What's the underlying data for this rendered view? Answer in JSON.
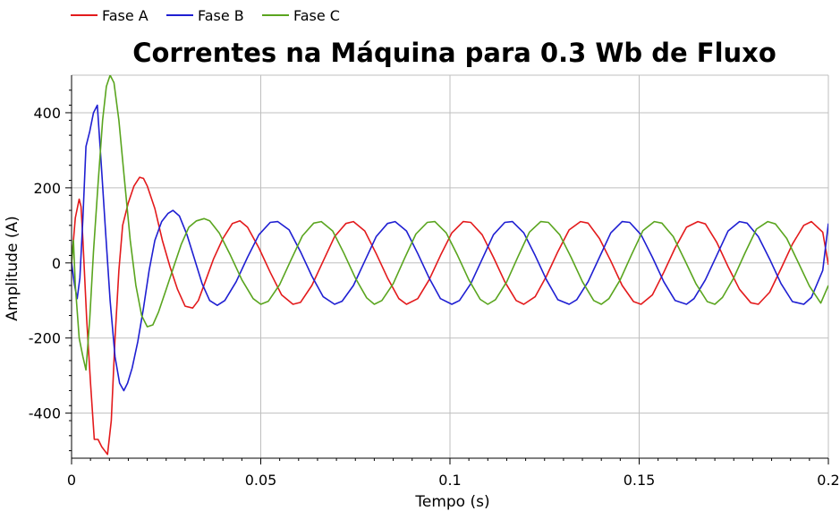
{
  "chart_data": {
    "type": "line",
    "title": "Correntes na Máquina para 0.3 Wb de Fluxo",
    "xlabel": "Tempo (s)",
    "ylabel": "Amplitude (A)",
    "xlim": [
      0,
      0.2
    ],
    "ylim": [
      -520,
      500
    ],
    "xticks": [
      0,
      0.05,
      0.1,
      0.15,
      0.2
    ],
    "xtick_labels": [
      "0",
      "0.05",
      "0.1",
      "0.15",
      "0.2"
    ],
    "yticks": [
      -400,
      -200,
      0,
      200,
      400
    ],
    "ytick_labels": [
      "-400",
      "-200",
      "0",
      "200",
      "400"
    ],
    "grid": true,
    "legend_position": "top-left",
    "series": [
      {
        "name": "Fase A",
        "color": "#e31a1c",
        "points": [
          [
            0,
            0
          ],
          [
            0.001,
            120
          ],
          [
            0.002,
            170
          ],
          [
            0.0025,
            150
          ],
          [
            0.003,
            60
          ],
          [
            0.004,
            -150
          ],
          [
            0.005,
            -320
          ],
          [
            0.006,
            -470
          ],
          [
            0.007,
            -470
          ],
          [
            0.008,
            -490
          ],
          [
            0.0095,
            -510
          ],
          [
            0.0105,
            -420
          ],
          [
            0.0115,
            -200
          ],
          [
            0.0125,
            -20
          ],
          [
            0.0135,
            100
          ],
          [
            0.015,
            160
          ],
          [
            0.0165,
            205
          ],
          [
            0.018,
            228
          ],
          [
            0.019,
            225
          ],
          [
            0.02,
            205
          ],
          [
            0.022,
            145
          ],
          [
            0.024,
            60
          ],
          [
            0.026,
            -10
          ],
          [
            0.028,
            -70
          ],
          [
            0.03,
            -115
          ],
          [
            0.032,
            -120
          ],
          [
            0.0335,
            -100
          ],
          [
            0.0355,
            -45
          ],
          [
            0.0375,
            10
          ],
          [
            0.04,
            65
          ],
          [
            0.0425,
            105
          ],
          [
            0.0445,
            112
          ],
          [
            0.0465,
            95
          ],
          [
            0.0495,
            40
          ],
          [
            0.0525,
            -25
          ],
          [
            0.0555,
            -85
          ],
          [
            0.0585,
            -110
          ],
          [
            0.0605,
            -105
          ],
          [
            0.0635,
            -60
          ],
          [
            0.0665,
            5
          ],
          [
            0.0695,
            70
          ],
          [
            0.0725,
            105
          ],
          [
            0.0745,
            110
          ],
          [
            0.0775,
            85
          ],
          [
            0.0805,
            25
          ],
          [
            0.0835,
            -40
          ],
          [
            0.0865,
            -95
          ],
          [
            0.0885,
            -110
          ],
          [
            0.0915,
            -95
          ],
          [
            0.0945,
            -45
          ],
          [
            0.0975,
            20
          ],
          [
            0.1005,
            80
          ],
          [
            0.1035,
            110
          ],
          [
            0.1055,
            108
          ],
          [
            0.1085,
            75
          ],
          [
            0.1115,
            15
          ],
          [
            0.1145,
            -50
          ],
          [
            0.1175,
            -100
          ],
          [
            0.1195,
            -110
          ],
          [
            0.1225,
            -90
          ],
          [
            0.1255,
            -35
          ],
          [
            0.1285,
            30
          ],
          [
            0.1315,
            88
          ],
          [
            0.1345,
            110
          ],
          [
            0.1365,
            106
          ],
          [
            0.1395,
            65
          ],
          [
            0.1425,
            5
          ],
          [
            0.1455,
            -60
          ],
          [
            0.1485,
            -103
          ],
          [
            0.1505,
            -110
          ],
          [
            0.1535,
            -85
          ],
          [
            0.1565,
            -25
          ],
          [
            0.1595,
            40
          ],
          [
            0.1625,
            95
          ],
          [
            0.1655,
            110
          ],
          [
            0.1675,
            104
          ],
          [
            0.1705,
            55
          ],
          [
            0.1735,
            -10
          ],
          [
            0.1765,
            -70
          ],
          [
            0.1795,
            -106
          ],
          [
            0.1815,
            -110
          ],
          [
            0.1845,
            -78
          ],
          [
            0.1875,
            -15
          ],
          [
            0.1905,
            50
          ],
          [
            0.1935,
            100
          ],
          [
            0.1955,
            110
          ],
          [
            0.1985,
            82
          ],
          [
            0.2,
            -5
          ]
        ]
      },
      {
        "name": "Fase B",
        "color": "#1f1fd2",
        "points": [
          [
            0,
            0
          ],
          [
            0.0008,
            -60
          ],
          [
            0.0015,
            -95
          ],
          [
            0.0022,
            -40
          ],
          [
            0.003,
            120
          ],
          [
            0.0038,
            310
          ],
          [
            0.0048,
            350
          ],
          [
            0.0058,
            400
          ],
          [
            0.0068,
            420
          ],
          [
            0.0078,
            270
          ],
          [
            0.009,
            80
          ],
          [
            0.0102,
            -100
          ],
          [
            0.0115,
            -250
          ],
          [
            0.0127,
            -320
          ],
          [
            0.0138,
            -340
          ],
          [
            0.0148,
            -320
          ],
          [
            0.016,
            -280
          ],
          [
            0.0175,
            -210
          ],
          [
            0.019,
            -120
          ],
          [
            0.0205,
            -20
          ],
          [
            0.022,
            60
          ],
          [
            0.0238,
            110
          ],
          [
            0.0255,
            132
          ],
          [
            0.0268,
            140
          ],
          [
            0.0285,
            125
          ],
          [
            0.0305,
            75
          ],
          [
            0.0325,
            10
          ],
          [
            0.0345,
            -55
          ],
          [
            0.0365,
            -100
          ],
          [
            0.0385,
            -113
          ],
          [
            0.0405,
            -100
          ],
          [
            0.0435,
            -50
          ],
          [
            0.0465,
            15
          ],
          [
            0.0495,
            75
          ],
          [
            0.0525,
            108
          ],
          [
            0.0545,
            110
          ],
          [
            0.0575,
            88
          ],
          [
            0.0605,
            30
          ],
          [
            0.0635,
            -35
          ],
          [
            0.0665,
            -90
          ],
          [
            0.0695,
            -110
          ],
          [
            0.0715,
            -102
          ],
          [
            0.0745,
            -60
          ],
          [
            0.0775,
            5
          ],
          [
            0.0805,
            70
          ],
          [
            0.0835,
            105
          ],
          [
            0.0855,
            110
          ],
          [
            0.0885,
            85
          ],
          [
            0.0915,
            25
          ],
          [
            0.0945,
            -40
          ],
          [
            0.0975,
            -95
          ],
          [
            0.1005,
            -110
          ],
          [
            0.1025,
            -100
          ],
          [
            0.1055,
            -55
          ],
          [
            0.1085,
            10
          ],
          [
            0.1115,
            75
          ],
          [
            0.1145,
            108
          ],
          [
            0.1165,
            110
          ],
          [
            0.1195,
            80
          ],
          [
            0.1225,
            20
          ],
          [
            0.1255,
            -45
          ],
          [
            0.1285,
            -98
          ],
          [
            0.1315,
            -110
          ],
          [
            0.1335,
            -98
          ],
          [
            0.1365,
            -50
          ],
          [
            0.1395,
            15
          ],
          [
            0.1425,
            80
          ],
          [
            0.1455,
            110
          ],
          [
            0.1475,
            108
          ],
          [
            0.1505,
            75
          ],
          [
            0.1535,
            15
          ],
          [
            0.1565,
            -50
          ],
          [
            0.1595,
            -100
          ],
          [
            0.1625,
            -110
          ],
          [
            0.1645,
            -95
          ],
          [
            0.1675,
            -45
          ],
          [
            0.1705,
            20
          ],
          [
            0.1735,
            85
          ],
          [
            0.1765,
            110
          ],
          [
            0.1785,
            106
          ],
          [
            0.1815,
            70
          ],
          [
            0.1845,
            10
          ],
          [
            0.1875,
            -55
          ],
          [
            0.1905,
            -103
          ],
          [
            0.1935,
            -110
          ],
          [
            0.1955,
            -92
          ],
          [
            0.1985,
            -20
          ],
          [
            0.2,
            105
          ]
        ]
      },
      {
        "name": "Fase C",
        "color": "#5aa51f",
        "points": [
          [
            0,
            0
          ],
          [
            0.0005,
            60
          ],
          [
            0.001,
            -60
          ],
          [
            0.002,
            -200
          ],
          [
            0.003,
            -250
          ],
          [
            0.0038,
            -285
          ],
          [
            0.0048,
            -150
          ],
          [
            0.0058,
            30
          ],
          [
            0.007,
            210
          ],
          [
            0.0082,
            380
          ],
          [
            0.0092,
            470
          ],
          [
            0.0102,
            500
          ],
          [
            0.0112,
            480
          ],
          [
            0.0125,
            380
          ],
          [
            0.014,
            220
          ],
          [
            0.0155,
            60
          ],
          [
            0.017,
            -60
          ],
          [
            0.0185,
            -140
          ],
          [
            0.02,
            -170
          ],
          [
            0.0215,
            -165
          ],
          [
            0.023,
            -130
          ],
          [
            0.025,
            -70
          ],
          [
            0.027,
            -10
          ],
          [
            0.029,
            50
          ],
          [
            0.031,
            95
          ],
          [
            0.033,
            112
          ],
          [
            0.035,
            118
          ],
          [
            0.0365,
            112
          ],
          [
            0.039,
            80
          ],
          [
            0.042,
            20
          ],
          [
            0.045,
            -45
          ],
          [
            0.048,
            -95
          ],
          [
            0.05,
            -110
          ],
          [
            0.052,
            -102
          ],
          [
            0.055,
            -58
          ],
          [
            0.058,
            8
          ],
          [
            0.061,
            72
          ],
          [
            0.064,
            106
          ],
          [
            0.066,
            110
          ],
          [
            0.069,
            85
          ],
          [
            0.072,
            25
          ],
          [
            0.075,
            -40
          ],
          [
            0.078,
            -93
          ],
          [
            0.08,
            -110
          ],
          [
            0.082,
            -100
          ],
          [
            0.085,
            -55
          ],
          [
            0.088,
            12
          ],
          [
            0.091,
            77
          ],
          [
            0.094,
            108
          ],
          [
            0.096,
            110
          ],
          [
            0.099,
            80
          ],
          [
            0.102,
            20
          ],
          [
            0.105,
            -45
          ],
          [
            0.108,
            -97
          ],
          [
            0.11,
            -110
          ],
          [
            0.112,
            -98
          ],
          [
            0.115,
            -50
          ],
          [
            0.118,
            17
          ],
          [
            0.121,
            82
          ],
          [
            0.124,
            110
          ],
          [
            0.126,
            108
          ],
          [
            0.129,
            75
          ],
          [
            0.132,
            15
          ],
          [
            0.135,
            -50
          ],
          [
            0.138,
            -100
          ],
          [
            0.14,
            -110
          ],
          [
            0.142,
            -95
          ],
          [
            0.145,
            -45
          ],
          [
            0.148,
            22
          ],
          [
            0.151,
            86
          ],
          [
            0.154,
            110
          ],
          [
            0.156,
            106
          ],
          [
            0.159,
            70
          ],
          [
            0.162,
            8
          ],
          [
            0.165,
            -55
          ],
          [
            0.168,
            -103
          ],
          [
            0.17,
            -110
          ],
          [
            0.172,
            -92
          ],
          [
            0.175,
            -40
          ],
          [
            0.178,
            27
          ],
          [
            0.181,
            90
          ],
          [
            0.184,
            110
          ],
          [
            0.186,
            104
          ],
          [
            0.189,
            65
          ],
          [
            0.192,
            2
          ],
          [
            0.195,
            -62
          ],
          [
            0.198,
            -107
          ],
          [
            0.2,
            -60
          ]
        ]
      }
    ]
  }
}
